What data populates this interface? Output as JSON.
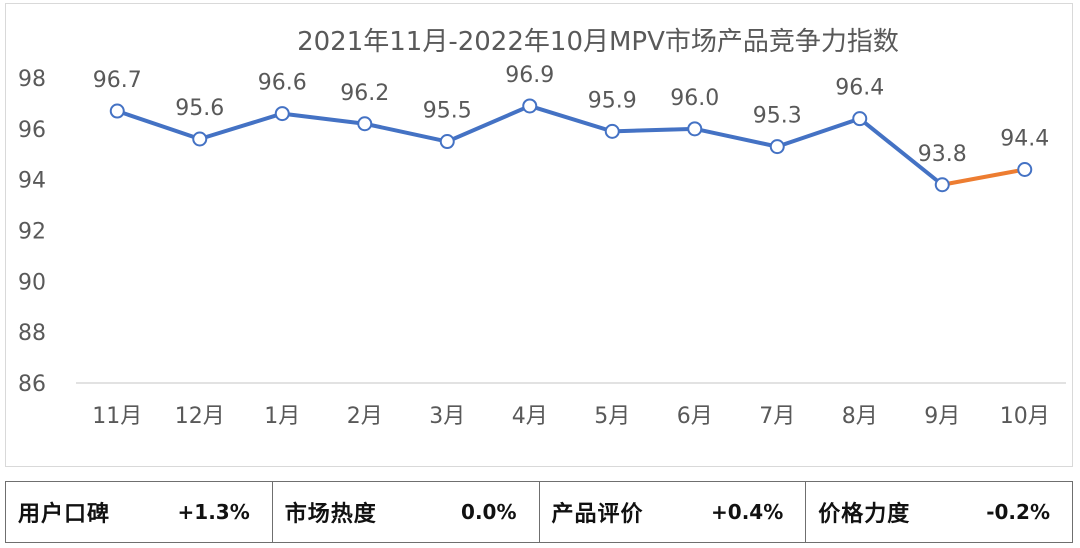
{
  "chart_data": {
    "type": "line",
    "title": "2021年11月-2022年10月MPV市场产品竞争力指数",
    "categories": [
      "11月",
      "12月",
      "1月",
      "2月",
      "3月",
      "4月",
      "5月",
      "6月",
      "7月",
      "8月",
      "9月",
      "10月"
    ],
    "series": [
      {
        "name": "MPV市场产品竞争力指数",
        "values": [
          96.7,
          95.6,
          96.6,
          96.2,
          95.5,
          96.9,
          95.9,
          96.0,
          95.3,
          96.4,
          93.8,
          94.4
        ],
        "data_labels": [
          "96.7",
          "95.6",
          "96.6",
          "96.2",
          "95.5",
          "96.9",
          "95.9",
          "96.0",
          "95.3",
          "96.4",
          "93.8",
          "94.4"
        ],
        "color": "#4472c4",
        "last_segment_color": "#ed7d31"
      }
    ],
    "ylim": [
      86,
      98
    ],
    "yticks": [
      86,
      88,
      90,
      92,
      94,
      96,
      98
    ],
    "ytick_labels": [
      "86",
      "88",
      "90",
      "92",
      "94",
      "96",
      "98"
    ],
    "xlabel": "",
    "ylabel": "",
    "grid": false,
    "legend": "none"
  },
  "summary": [
    {
      "label": "用户口碑",
      "value": "+1.3%"
    },
    {
      "label": "市场热度",
      "value": "0.0%"
    },
    {
      "label": "产品评价",
      "value": "+0.4%"
    },
    {
      "label": "价格力度",
      "value": "-0.2%"
    }
  ],
  "colors": {
    "line": "#4472c4",
    "last_segment": "#ed7d31",
    "drop_line": "#b4c7e7",
    "axis": "#d9d9d9",
    "text": "#595959"
  }
}
